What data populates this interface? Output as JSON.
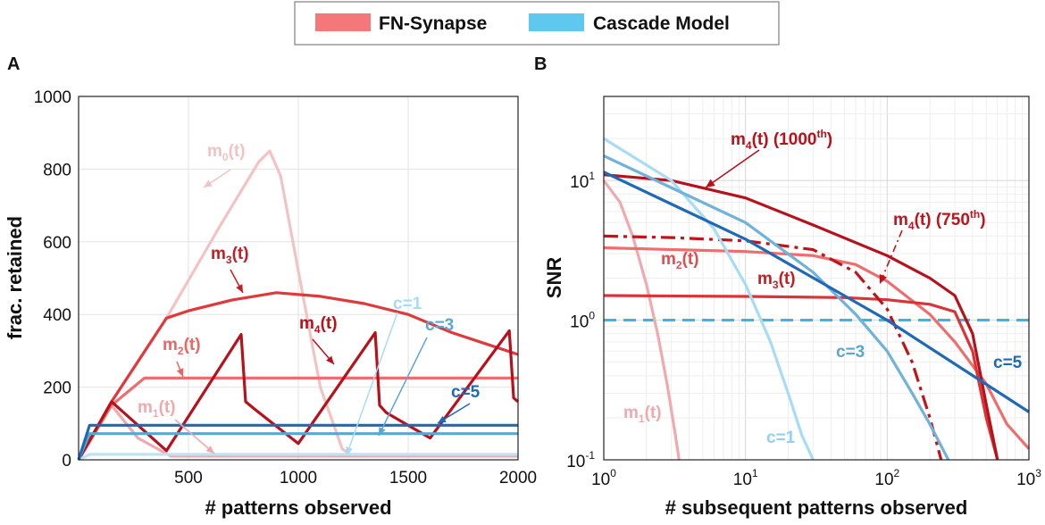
{
  "legend": {
    "items": [
      {
        "label": "FN-Synapse",
        "color": "#f4777a"
      },
      {
        "label": "Cascade Model",
        "color": "#5ec8ee"
      }
    ]
  },
  "chart_data": [
    {
      "panel": "A",
      "type": "line",
      "xlabel": "# patterns observed",
      "ylabel": "frac. retained",
      "xlim": [
        0,
        2000
      ],
      "ylim": [
        0,
        1000
      ],
      "xticks": [
        500,
        1000,
        1500,
        2000
      ],
      "yticks": [
        0,
        200,
        400,
        600,
        800,
        1000
      ],
      "grid": true,
      "series": [
        {
          "name": "m0(t)",
          "color": "#f3c3c3",
          "x": [
            0,
            150,
            400,
            650,
            820,
            870,
            920,
            1000,
            1100,
            1200,
            1250,
            2000
          ],
          "y": [
            0,
            160,
            390,
            650,
            820,
            850,
            780,
            520,
            200,
            30,
            10,
            10
          ]
        },
        {
          "name": "m1(t)",
          "color": "#f0a9ae",
          "x": [
            0,
            150,
            270,
            420,
            2000
          ],
          "y": [
            0,
            150,
            60,
            10,
            10
          ]
        },
        {
          "name": "m2(t)",
          "color": "#ee6d6d",
          "x": [
            0,
            150,
            300,
            500,
            800,
            1100,
            1400,
            1700,
            2000
          ],
          "y": [
            0,
            150,
            225,
            225,
            225,
            225,
            225,
            225,
            225
          ]
        },
        {
          "name": "m3(t)",
          "color": "#e0393c",
          "x": [
            0,
            150,
            400,
            500,
            700,
            900,
            1100,
            1300,
            1500,
            1700,
            1850,
            2000
          ],
          "y": [
            0,
            160,
            390,
            410,
            440,
            460,
            450,
            430,
            400,
            350,
            320,
            290
          ]
        },
        {
          "name": "m4(t)",
          "color": "#b5121b",
          "x": [
            0,
            150,
            400,
            740,
            760,
            800,
            1000,
            1350,
            1370,
            1400,
            1600,
            1960,
            1980,
            2000
          ],
          "y": [
            0,
            160,
            25,
            345,
            160,
            140,
            45,
            350,
            150,
            130,
            60,
            355,
            170,
            160
          ]
        },
        {
          "name": "c=1",
          "color": "#bde3f5",
          "x": [
            0,
            50,
            2000
          ],
          "y": [
            0,
            15,
            15
          ]
        },
        {
          "name": "c=3",
          "color": "#5aa7d2",
          "x": [
            0,
            50,
            2000
          ],
          "y": [
            0,
            72,
            72
          ]
        },
        {
          "name": "c=5",
          "color": "#1f6ab5",
          "x": [
            0,
            50,
            2000
          ],
          "y": [
            0,
            95,
            95
          ]
        }
      ],
      "annotations": [
        {
          "main": "m",
          "sub": "0",
          "tail": "(t)",
          "color": "#f3c3c3"
        },
        {
          "main": "m",
          "sub": "3",
          "tail": "(t)",
          "color": "#c41e24"
        },
        {
          "main": "m",
          "sub": "2",
          "tail": "(t)",
          "color": "#ec6464"
        },
        {
          "main": "m",
          "sub": "4",
          "tail": "(t)",
          "color": "#b5121b"
        },
        {
          "main": "m",
          "sub": "1",
          "tail": "(t)",
          "color": "#f0a9ae"
        },
        {
          "main": "c=1",
          "color": "#a6dcf4"
        },
        {
          "main": "c=3",
          "color": "#5aa7d2"
        },
        {
          "main": "c=5",
          "color": "#1f6ab5"
        }
      ]
    },
    {
      "panel": "B",
      "type": "line",
      "xscale": "log",
      "yscale": "log",
      "xlabel": "# subsequent patterns observed",
      "ylabel": "SNR",
      "xlim": [
        1,
        1000
      ],
      "ylim": [
        0.1,
        40
      ],
      "grid": true,
      "xticks": [
        {
          "base": "10",
          "exp": "0"
        },
        {
          "base": "10",
          "exp": "1"
        },
        {
          "base": "10",
          "exp": "2"
        },
        {
          "base": "10",
          "exp": "3"
        }
      ],
      "yticks": [
        {
          "base": "10",
          "exp": "-1"
        },
        {
          "base": "10",
          "exp": "0"
        },
        {
          "base": "10",
          "exp": "1"
        }
      ],
      "threshold": {
        "y": 1,
        "color": "#3fb4e3",
        "style": "dashed"
      },
      "series": [
        {
          "name": "m1(t)",
          "color": "#f0a9ae",
          "x": [
            1,
            1.3,
            1.6,
            2,
            2.4,
            2.8,
            3.2,
            3.4
          ],
          "y": [
            10,
            7,
            4,
            1.8,
            0.8,
            0.35,
            0.15,
            0.1
          ]
        },
        {
          "name": "m2(t)",
          "color": "#ee6d6d",
          "x": [
            1,
            10,
            30,
            60,
            100,
            200,
            300,
            500,
            700,
            1000
          ],
          "y": [
            3.3,
            3.1,
            2.9,
            2.5,
            1.9,
            1.1,
            0.7,
            0.35,
            0.18,
            0.12
          ]
        },
        {
          "name": "m3(t)",
          "color": "#d93438",
          "x": [
            1,
            10,
            50,
            100,
            200,
            300,
            400,
            500,
            600
          ],
          "y": [
            1.5,
            1.48,
            1.45,
            1.4,
            1.3,
            1.15,
            0.6,
            0.2,
            0.1
          ]
        },
        {
          "name": "m4(t) (750th)",
          "color": "#c0141c",
          "style": "dashdot",
          "x": [
            1,
            3,
            10,
            30,
            60,
            100,
            150,
            200,
            240
          ],
          "y": [
            4,
            3.9,
            3.7,
            3.2,
            2.2,
            1.2,
            0.5,
            0.2,
            0.1
          ]
        },
        {
          "name": "m4(t) (1000th)",
          "color": "#b5121b",
          "x": [
            1,
            3,
            10,
            30,
            100,
            200,
            300,
            400,
            500,
            600
          ],
          "y": [
            11,
            10,
            7.5,
            4.8,
            2.9,
            2,
            1.5,
            0.8,
            0.25,
            0.1
          ]
        },
        {
          "name": "c=1",
          "color": "#a6dcf4",
          "x": [
            1,
            3,
            6,
            10,
            15,
            20,
            25,
            30
          ],
          "y": [
            20,
            10,
            4.5,
            1.8,
            0.7,
            0.3,
            0.15,
            0.1
          ]
        },
        {
          "name": "c=3",
          "color": "#70b2da",
          "x": [
            1,
            10,
            30,
            60,
            100,
            150,
            200,
            270
          ],
          "y": [
            15,
            5,
            2.2,
            1.1,
            0.6,
            0.3,
            0.18,
            0.1
          ]
        },
        {
          "name": "c=5",
          "color": "#1f6ab5",
          "x": [
            1,
            10,
            100,
            1000
          ],
          "y": [
            11.5,
            3.8,
            1.0,
            0.22
          ]
        }
      ],
      "annotations": [
        {
          "main": "m",
          "sub": "4",
          "tail": "(t) (1000",
          "sup": "th",
          "close": ")",
          "color": "#b5121b"
        },
        {
          "main": "m",
          "sub": "4",
          "tail": "(t) (750",
          "sup": "th",
          "close": ")",
          "color": "#c0141c"
        },
        {
          "main": "m",
          "sub": "2",
          "tail": "(t)",
          "color": "#e14d50"
        },
        {
          "main": "m",
          "sub": "3",
          "tail": "(t)",
          "color": "#c41e24"
        },
        {
          "main": "m",
          "sub": "1",
          "tail": "(t)",
          "color": "#f0a9ae"
        },
        {
          "main": "c=1",
          "color": "#8fd3f2"
        },
        {
          "main": "c=3",
          "color": "#5aa7d2"
        },
        {
          "main": "c=5",
          "color": "#1f6ab5"
        }
      ]
    }
  ]
}
